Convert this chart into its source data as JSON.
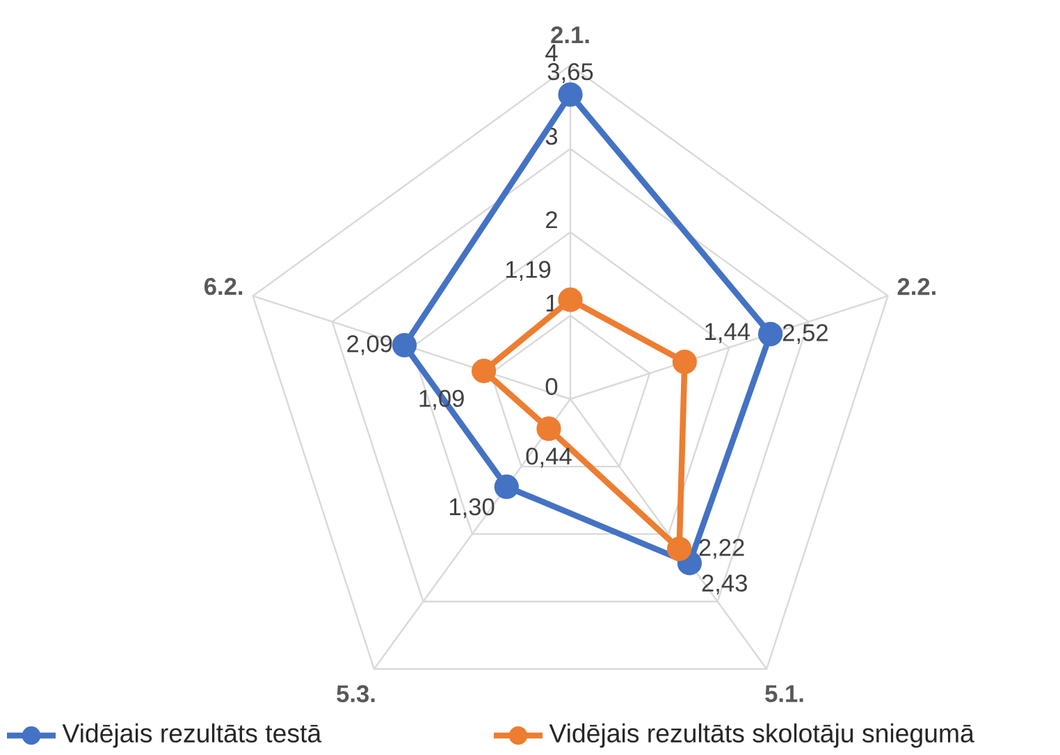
{
  "chart_data": {
    "type": "radar",
    "categories": [
      "2.1.",
      "2.2.",
      "5.1.",
      "5.3.",
      "6.2."
    ],
    "series": [
      {
        "name": "Vidējais rezultāts testā",
        "color": "#4472c4",
        "values": [
          3.65,
          2.52,
          2.43,
          1.3,
          2.09
        ],
        "value_labels": [
          "3,65",
          "2,52",
          "2,43",
          "1,30",
          "2,09"
        ]
      },
      {
        "name": "Vidējais rezultāts skolotāju sniegumā",
        "color": "#ed7d31",
        "values": [
          1.19,
          1.44,
          2.22,
          0.44,
          1.09
        ],
        "value_labels": [
          "1,19",
          "1,44",
          "2,22",
          "0,44",
          "1,09"
        ]
      }
    ],
    "ylim": [
      0,
      4
    ],
    "yticks": [
      0,
      1,
      2,
      3,
      4
    ],
    "marker": "circle",
    "legend": "bottom",
    "grid": true
  }
}
